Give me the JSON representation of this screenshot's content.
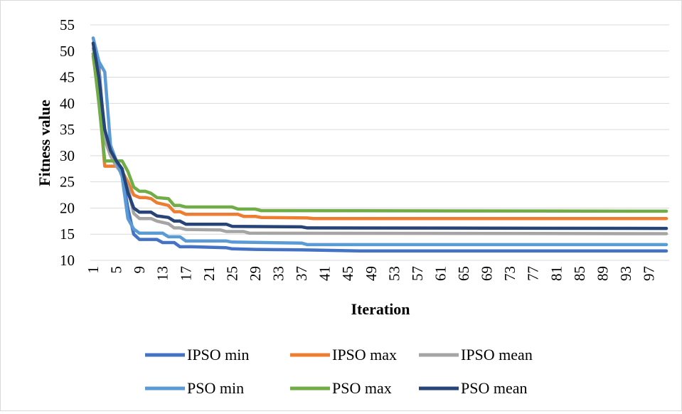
{
  "chart_data": {
    "type": "line",
    "xlabel": "Iteration",
    "ylabel": "Fitness value",
    "ylim": [
      10,
      55
    ],
    "y_ticks": [
      10,
      15,
      20,
      25,
      30,
      35,
      40,
      45,
      50,
      55
    ],
    "x_ticks": [
      1,
      5,
      9,
      13,
      17,
      21,
      25,
      29,
      33,
      37,
      41,
      45,
      49,
      53,
      57,
      61,
      65,
      69,
      73,
      77,
      81,
      85,
      89,
      93,
      97
    ],
    "xlim": [
      1,
      100
    ],
    "grid": "horizontal",
    "legend_position": "bottom",
    "series": [
      {
        "name": "IPSO min",
        "color": "#4472C4",
        "points": [
          [
            1,
            49.5
          ],
          [
            2,
            47
          ],
          [
            3,
            33
          ],
          [
            4,
            31
          ],
          [
            5,
            29
          ],
          [
            6,
            26.5
          ],
          [
            7,
            20
          ],
          [
            8,
            15
          ],
          [
            9,
            14
          ],
          [
            10,
            14
          ],
          [
            12,
            14
          ],
          [
            13,
            13.4
          ],
          [
            15,
            13.4
          ],
          [
            16,
            12.6
          ],
          [
            18,
            12.6
          ],
          [
            24,
            12.4
          ],
          [
            25,
            12.2
          ],
          [
            29,
            12.1
          ],
          [
            37,
            12.0
          ],
          [
            47,
            11.8
          ],
          [
            100,
            11.8
          ]
        ]
      },
      {
        "name": "IPSO max",
        "color": "#ED7D31",
        "points": [
          [
            1,
            49
          ],
          [
            2,
            41
          ],
          [
            3,
            28
          ],
          [
            4,
            28
          ],
          [
            5,
            28
          ],
          [
            6,
            27
          ],
          [
            7,
            25
          ],
          [
            8,
            22.5
          ],
          [
            9,
            22
          ],
          [
            10,
            22
          ],
          [
            11,
            21.8
          ],
          [
            12,
            21
          ],
          [
            14,
            20.5
          ],
          [
            15,
            19.3
          ],
          [
            16,
            19.3
          ],
          [
            17,
            18.8
          ],
          [
            26,
            18.8
          ],
          [
            27,
            18.4
          ],
          [
            29,
            18.4
          ],
          [
            30,
            18.2
          ],
          [
            38,
            18.1
          ],
          [
            39,
            18.0
          ],
          [
            100,
            18.0
          ]
        ]
      },
      {
        "name": "IPSO mean",
        "color": "#A5A5A5",
        "points": [
          [
            1,
            50.5
          ],
          [
            2,
            46
          ],
          [
            3,
            33
          ],
          [
            4,
            30
          ],
          [
            5,
            28
          ],
          [
            6,
            26.5
          ],
          [
            7,
            24
          ],
          [
            8,
            19
          ],
          [
            9,
            18
          ],
          [
            11,
            18
          ],
          [
            12,
            17.5
          ],
          [
            14,
            17
          ],
          [
            15,
            16.2
          ],
          [
            16,
            16.2
          ],
          [
            17,
            15.9
          ],
          [
            23,
            15.8
          ],
          [
            24,
            15.5
          ],
          [
            27,
            15.5
          ],
          [
            28,
            15.2
          ],
          [
            100,
            15.1
          ]
        ]
      },
      {
        "name": "PSO min",
        "color": "#5B9BD5",
        "points": [
          [
            1,
            52.5
          ],
          [
            2,
            48
          ],
          [
            3,
            46
          ],
          [
            4,
            32
          ],
          [
            5,
            29
          ],
          [
            6,
            26
          ],
          [
            7,
            18
          ],
          [
            8,
            16
          ],
          [
            9,
            15.2
          ],
          [
            13,
            15.2
          ],
          [
            14,
            14.5
          ],
          [
            16,
            14.5
          ],
          [
            17,
            13.7
          ],
          [
            24,
            13.7
          ],
          [
            25,
            13.5
          ],
          [
            37,
            13.3
          ],
          [
            38,
            13.0
          ],
          [
            100,
            13.0
          ]
        ]
      },
      {
        "name": "PSO max",
        "color": "#70AD47",
        "points": [
          [
            1,
            49.5
          ],
          [
            2,
            40
          ],
          [
            3,
            29
          ],
          [
            4,
            29
          ],
          [
            5,
            29
          ],
          [
            6,
            29
          ],
          [
            7,
            27
          ],
          [
            8,
            24
          ],
          [
            9,
            23.2
          ],
          [
            10,
            23.2
          ],
          [
            11,
            22.8
          ],
          [
            12,
            22
          ],
          [
            14,
            21.8
          ],
          [
            15,
            20.5
          ],
          [
            16,
            20.5
          ],
          [
            17,
            20.2
          ],
          [
            25,
            20.2
          ],
          [
            26,
            19.8
          ],
          [
            29,
            19.8
          ],
          [
            30,
            19.5
          ],
          [
            100,
            19.4
          ]
        ]
      },
      {
        "name": "PSO mean",
        "color": "#264478",
        "points": [
          [
            1,
            51.5
          ],
          [
            2,
            45
          ],
          [
            3,
            35
          ],
          [
            4,
            31
          ],
          [
            5,
            29
          ],
          [
            6,
            27.5
          ],
          [
            7,
            23
          ],
          [
            8,
            20
          ],
          [
            9,
            19.2
          ],
          [
            11,
            19.2
          ],
          [
            12,
            18.5
          ],
          [
            14,
            18.2
          ],
          [
            15,
            17.5
          ],
          [
            16,
            17.5
          ],
          [
            17,
            16.9
          ],
          [
            24,
            16.9
          ],
          [
            25,
            16.5
          ],
          [
            37,
            16.4
          ],
          [
            38,
            16.2
          ],
          [
            100,
            16.1
          ]
        ]
      }
    ]
  }
}
